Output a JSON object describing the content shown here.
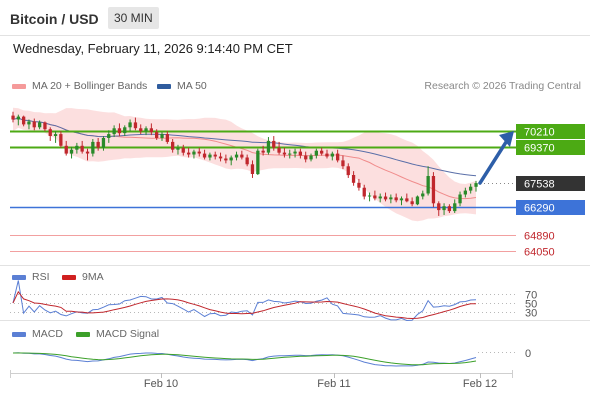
{
  "header": {
    "title": "Bitcoin / USD",
    "interval": "30 MIN"
  },
  "datetime": "Wednesday, February 11, 2026 9:14:40 PM CET",
  "legend_main": [
    {
      "label": "MA 20 + Bollinger Bands",
      "color": "#f59a9a"
    },
    {
      "label": "MA 50",
      "color": "#2f5c9e"
    }
  ],
  "copyright": "Research © 2026 Trading Central",
  "legend_rsi": [
    {
      "label": "RSI",
      "color": "#5b7fd4"
    },
    {
      "label": "9MA",
      "color": "#d02020"
    }
  ],
  "legend_macd": [
    {
      "label": "MACD",
      "color": "#5b7fd4"
    },
    {
      "label": "MACD Signal",
      "color": "#3ca02a"
    }
  ],
  "colors": {
    "up_candle": "#2a8a2a",
    "down_candle": "#c0272d",
    "resistance": "#4caa14",
    "support": "#3d73d8",
    "extra": "#f2a0a0",
    "arrow": "#2d5ea8",
    "price": "#333333",
    "band": "#fbd9d9"
  },
  "chart_data": {
    "type": "candlestick",
    "price_scale": [
      63500,
      71500
    ],
    "levels": [
      {
        "value": 70210,
        "label": "70210",
        "kind": "resistance"
      },
      {
        "value": 69370,
        "label": "69370",
        "kind": "resistance"
      },
      {
        "value": 67538,
        "label": "67538",
        "kind": "current"
      },
      {
        "value": 66290,
        "label": "66290",
        "kind": "support"
      },
      {
        "value": 64890,
        "label": "64890",
        "kind": "extra"
      },
      {
        "value": 64050,
        "label": "64050",
        "kind": "extra"
      }
    ],
    "target": 70210,
    "x_ticks": [
      "Feb 10",
      "Feb 11",
      "Feb 12"
    ],
    "rsi_levels": [
      "70",
      "50",
      "30"
    ],
    "macd_levels": [
      "0"
    ],
    "ohlc": [
      [
        71000,
        71200,
        70650,
        70800
      ],
      [
        70800,
        71050,
        70500,
        70950
      ],
      [
        70950,
        71000,
        70450,
        70550
      ],
      [
        70550,
        70800,
        70300,
        70700
      ],
      [
        70700,
        70850,
        70250,
        70400
      ],
      [
        70400,
        70750,
        70300,
        70650
      ],
      [
        70650,
        70700,
        70200,
        70300
      ],
      [
        70300,
        70400,
        69700,
        69950
      ],
      [
        69950,
        70200,
        69600,
        70050
      ],
      [
        70050,
        70200,
        69350,
        69450
      ],
      [
        69450,
        69700,
        68950,
        69050
      ],
      [
        69050,
        69400,
        68800,
        69250
      ],
      [
        69250,
        69600,
        69050,
        69450
      ],
      [
        69450,
        69700,
        69050,
        69150
      ],
      [
        69150,
        69300,
        68700,
        69050
      ],
      [
        69050,
        69800,
        68900,
        69650
      ],
      [
        69650,
        69850,
        69200,
        69350
      ],
      [
        69350,
        69950,
        69200,
        69850
      ],
      [
        69850,
        70250,
        69600,
        70050
      ],
      [
        70050,
        70500,
        69900,
        70350
      ],
      [
        70350,
        70600,
        69950,
        70100
      ],
      [
        70100,
        70500,
        69950,
        70400
      ],
      [
        70400,
        70800,
        70200,
        70650
      ],
      [
        70650,
        70900,
        70250,
        70350
      ],
      [
        70350,
        70550,
        70050,
        70200
      ],
      [
        70200,
        70450,
        70000,
        70350
      ],
      [
        70350,
        70600,
        70000,
        70150
      ],
      [
        70150,
        70300,
        69750,
        69850
      ],
      [
        69850,
        70150,
        69700,
        70050
      ],
      [
        70050,
        70200,
        69550,
        69650
      ],
      [
        69650,
        69800,
        69100,
        69250
      ],
      [
        69250,
        69500,
        69000,
        69350
      ],
      [
        69350,
        69500,
        68950,
        69100
      ],
      [
        69100,
        69350,
        68850,
        69000
      ],
      [
        69000,
        69250,
        68800,
        69150
      ],
      [
        69150,
        69350,
        68900,
        69050
      ],
      [
        69050,
        69250,
        68750,
        68850
      ],
      [
        68850,
        69100,
        68700,
        69000
      ],
      [
        69000,
        69150,
        68750,
        68900
      ],
      [
        68900,
        69100,
        68650,
        68800
      ],
      [
        68800,
        69000,
        68550,
        68700
      ],
      [
        68700,
        68950,
        68450,
        68850
      ],
      [
        68850,
        69150,
        68700,
        69000
      ],
      [
        69000,
        69200,
        68750,
        68850
      ],
      [
        68850,
        69000,
        68400,
        68500
      ],
      [
        68500,
        68700,
        67800,
        68000
      ],
      [
        68000,
        69300,
        67950,
        69200
      ],
      [
        69200,
        69450,
        68950,
        69100
      ],
      [
        69100,
        69900,
        69000,
        69700
      ],
      [
        69700,
        69950,
        69200,
        69350
      ],
      [
        69350,
        69650,
        69000,
        69100
      ],
      [
        69100,
        69350,
        68850,
        69000
      ],
      [
        69000,
        69250,
        68800,
        69050
      ],
      [
        69050,
        69300,
        68850,
        69150
      ],
      [
        69150,
        69300,
        68800,
        68950
      ],
      [
        68950,
        69150,
        68600,
        68750
      ],
      [
        68750,
        69050,
        68650,
        68950
      ],
      [
        68950,
        69300,
        68800,
        69200
      ],
      [
        69200,
        69350,
        68950,
        69050
      ],
      [
        69050,
        69250,
        68800,
        68900
      ],
      [
        68900,
        69150,
        68700,
        69050
      ],
      [
        69050,
        69250,
        68600,
        68700
      ],
      [
        68700,
        68950,
        68250,
        68400
      ],
      [
        68400,
        68550,
        67800,
        67950
      ],
      [
        67950,
        68150,
        67400,
        67550
      ],
      [
        67550,
        67750,
        67150,
        67300
      ],
      [
        67300,
        67450,
        66700,
        66850
      ],
      [
        66850,
        67050,
        66600,
        66900
      ],
      [
        66900,
        67150,
        66650,
        66750
      ],
      [
        66750,
        67000,
        66550,
        66850
      ],
      [
        66850,
        67050,
        66600,
        66700
      ],
      [
        66700,
        66950,
        66500,
        66800
      ],
      [
        66800,
        67000,
        66550,
        66650
      ],
      [
        66650,
        66850,
        66400,
        66750
      ],
      [
        66750,
        67000,
        66550,
        66600
      ],
      [
        66600,
        66800,
        66350,
        66450
      ],
      [
        66450,
        66900,
        66400,
        66850
      ],
      [
        66850,
        67150,
        66700,
        67000
      ],
      [
        67000,
        68400,
        66900,
        67900
      ],
      [
        67900,
        68100,
        66300,
        66500
      ],
      [
        66500,
        66600,
        65850,
        66150
      ],
      [
        66150,
        66500,
        65900,
        66350
      ],
      [
        66350,
        66450,
        66000,
        66100
      ],
      [
        66100,
        66700,
        66000,
        66500
      ],
      [
        66500,
        67100,
        66350,
        66950
      ],
      [
        66950,
        67300,
        66800,
        67150
      ],
      [
        67150,
        67500,
        67000,
        67350
      ],
      [
        67350,
        67650,
        67100,
        67538
      ]
    ]
  }
}
